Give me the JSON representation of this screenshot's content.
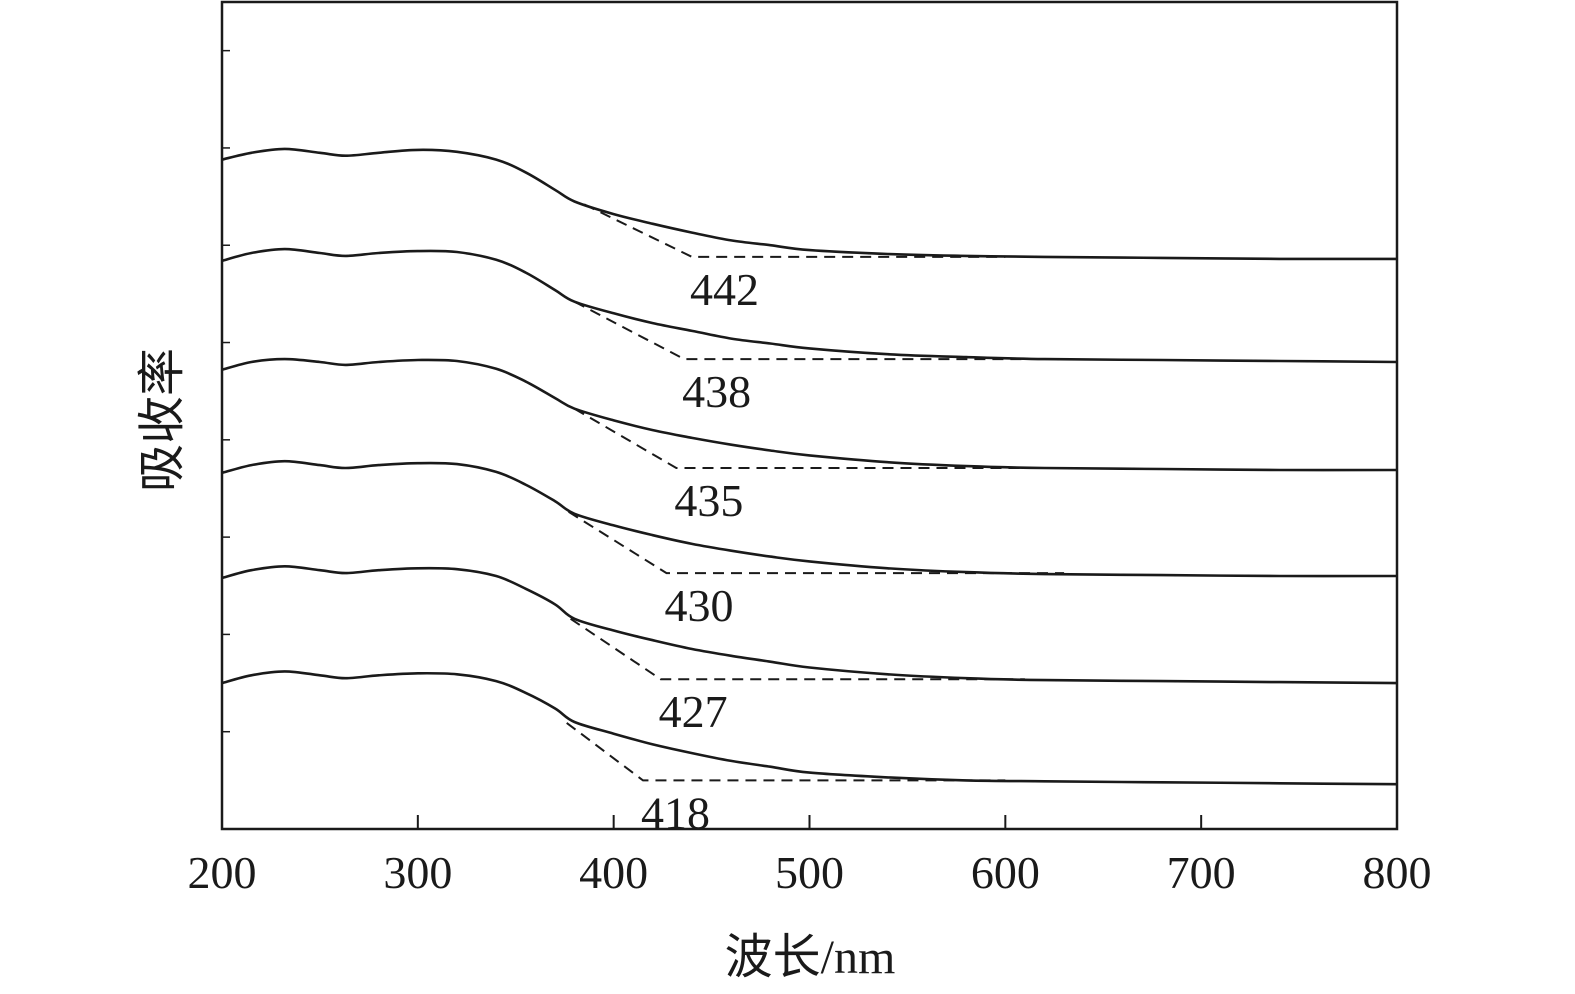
{
  "chart_data": {
    "type": "line",
    "title": "",
    "xlabel": "波长/nm",
    "ylabel": "吸收率",
    "xlim": [
      200,
      800
    ],
    "ylim": [
      0,
      8.5
    ],
    "x_ticks": [
      200,
      300,
      400,
      500,
      600,
      700,
      800
    ],
    "y_ticks_labeled": false,
    "grid": false,
    "legend": "none",
    "line_color": "#1a1a1a",
    "dashed_color": "#1a1a1a",
    "x_samples": [
      200,
      215,
      232,
      250,
      263,
      280,
      300,
      320,
      340,
      355,
      370,
      380,
      400,
      420,
      440,
      460,
      480,
      500,
      540,
      580,
      620,
      680,
      740,
      800
    ],
    "series": [
      {
        "y": [
          6.88,
          6.95,
          6.99,
          6.95,
          6.92,
          6.95,
          6.98,
          6.96,
          6.88,
          6.75,
          6.57,
          6.45,
          6.32,
          6.22,
          6.13,
          6.05,
          6.0,
          5.95,
          5.91,
          5.89,
          5.88,
          5.87,
          5.86,
          5.86
        ],
        "edge_label": "442",
        "tangent": [
          [
            385,
            6.42
          ],
          [
            440,
            5.88
          ],
          [
            600,
            5.88
          ]
        ]
      },
      {
        "y": [
          5.84,
          5.92,
          5.96,
          5.92,
          5.89,
          5.92,
          5.94,
          5.93,
          5.85,
          5.72,
          5.54,
          5.42,
          5.3,
          5.2,
          5.12,
          5.04,
          4.99,
          4.94,
          4.88,
          4.85,
          4.83,
          4.82,
          4.81,
          4.8
        ],
        "edge_label": "438",
        "tangent": [
          [
            380,
            5.42
          ],
          [
            436,
            4.83
          ],
          [
            610,
            4.83
          ]
        ]
      },
      {
        "y": [
          4.72,
          4.8,
          4.83,
          4.8,
          4.77,
          4.8,
          4.82,
          4.81,
          4.73,
          4.6,
          4.43,
          4.32,
          4.2,
          4.1,
          4.02,
          3.95,
          3.89,
          3.84,
          3.77,
          3.73,
          3.71,
          3.7,
          3.69,
          3.69
        ],
        "edge_label": "435",
        "tangent": [
          [
            380,
            4.32
          ],
          [
            432,
            3.71
          ],
          [
            620,
            3.71
          ]
        ]
      },
      {
        "y": [
          3.66,
          3.74,
          3.78,
          3.74,
          3.71,
          3.74,
          3.76,
          3.75,
          3.67,
          3.54,
          3.37,
          3.24,
          3.12,
          3.02,
          2.93,
          2.86,
          2.8,
          2.75,
          2.68,
          2.64,
          2.62,
          2.61,
          2.6,
          2.6
        ],
        "edge_label": "430",
        "tangent": [
          [
            377,
            3.26
          ],
          [
            427,
            2.63
          ],
          [
            630,
            2.63
          ]
        ]
      },
      {
        "y": [
          2.58,
          2.66,
          2.7,
          2.66,
          2.63,
          2.66,
          2.68,
          2.67,
          2.6,
          2.47,
          2.31,
          2.16,
          2.04,
          1.94,
          1.85,
          1.78,
          1.72,
          1.66,
          1.59,
          1.55,
          1.53,
          1.52,
          1.51,
          1.5
        ],
        "edge_label": "427",
        "tangent": [
          [
            378,
            2.16
          ],
          [
            424,
            1.54
          ],
          [
            610,
            1.54
          ]
        ]
      },
      {
        "y": [
          1.5,
          1.58,
          1.62,
          1.58,
          1.55,
          1.58,
          1.6,
          1.59,
          1.52,
          1.4,
          1.24,
          1.1,
          0.98,
          0.87,
          0.78,
          0.7,
          0.64,
          0.58,
          0.53,
          0.5,
          0.49,
          0.48,
          0.47,
          0.46
        ],
        "edge_label": "418",
        "tangent": [
          [
            376,
            1.09
          ],
          [
            415,
            0.5
          ],
          [
            600,
            0.5
          ]
        ]
      }
    ]
  }
}
